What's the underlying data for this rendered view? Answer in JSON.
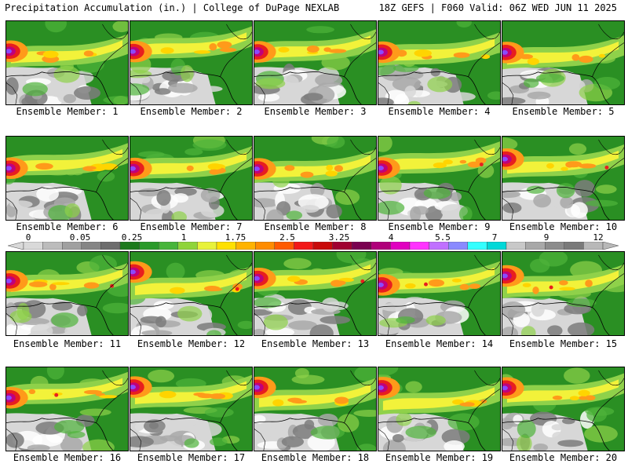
{
  "header": {
    "left_title": "Precipitation Accumulation (in.) | College of DuPage NEXLAB",
    "right_title": "18Z GEFS | F060 Valid: 06Z WED JUN 11 2025"
  },
  "members": [
    {
      "label": "Ensemble Member: 1"
    },
    {
      "label": "Ensemble Member: 2"
    },
    {
      "label": "Ensemble Member: 3"
    },
    {
      "label": "Ensemble Member: 4"
    },
    {
      "label": "Ensemble Member: 5"
    },
    {
      "label": "Ensemble Member: 6"
    },
    {
      "label": "Ensemble Member: 7"
    },
    {
      "label": "Ensemble Member: 8"
    },
    {
      "label": "Ensemble Member: 9"
    },
    {
      "label": "Ensemble Member: 10"
    },
    {
      "label": "Ensemble Member: 11"
    },
    {
      "label": "Ensemble Member: 12"
    },
    {
      "label": "Ensemble Member: 13"
    },
    {
      "label": "Ensemble Member: 14"
    },
    {
      "label": "Ensemble Member: 15"
    },
    {
      "label": "Ensemble Member: 16"
    },
    {
      "label": "Ensemble Member: 17"
    },
    {
      "label": "Ensemble Member: 18"
    },
    {
      "label": "Ensemble Member: 19"
    },
    {
      "label": "Ensemble Member: 20"
    }
  ],
  "colorbar": {
    "labels": [
      "0",
      "0.05",
      "0.25",
      "1",
      "1.75",
      "2.5",
      "3.25",
      "4",
      "5.5",
      "7",
      "9",
      "12"
    ],
    "colors": [
      "#d9d9d9",
      "#bcbcbc",
      "#a0a0a0",
      "#858585",
      "#6d6d6d",
      "#1c7a1c",
      "#2a9a2a",
      "#47b53a",
      "#8fd43a",
      "#e8f23a",
      "#ffe000",
      "#ffb300",
      "#ff8c00",
      "#ff5a00",
      "#f21818",
      "#c80a0a",
      "#a00030",
      "#7a0050",
      "#b0007a",
      "#e000c0",
      "#ff33ff",
      "#c070ff",
      "#8a8aff",
      "#33ffff",
      "#00d8d8",
      "#c8c8c8",
      "#a8a8a8",
      "#8c8c8c",
      "#7a7a7a",
      "#b8b8b8"
    ]
  },
  "colors": {
    "grey_light": "#d7d7d7",
    "grey_mid": "#a9a9a9",
    "grey_dark": "#7d7d7d",
    "green_dark": "#2a8f23",
    "green_mid": "#4fb33a",
    "green_light": "#8fd14a",
    "yellow": "#f2f23a",
    "gold": "#ffd400",
    "orange": "#ff9a1a",
    "red": "#e81e1e",
    "magenta": "#c0007a",
    "violet": "#8a4aff",
    "cyan": "#33ccff",
    "border": "#000000"
  }
}
